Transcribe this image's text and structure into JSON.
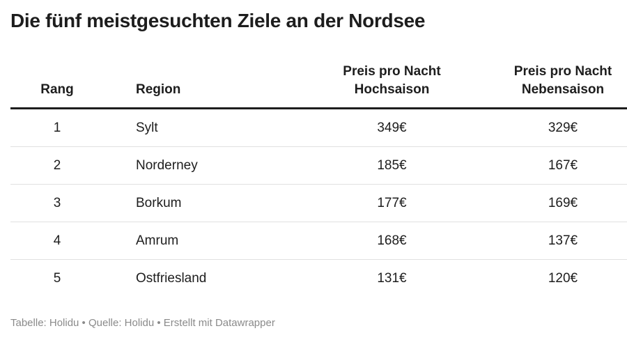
{
  "title": "Die fünf meistgesuchten Ziele an der Nordsee",
  "chart_data": {
    "type": "table",
    "title": "Die fünf meistgesuchten Ziele an der Nordsee",
    "columns": [
      {
        "line1": "Rang",
        "line2": ""
      },
      {
        "line1": "Region",
        "line2": ""
      },
      {
        "line1": "Preis pro Nacht",
        "line2": "Hochsaison"
      },
      {
        "line1": "Preis pro Nacht",
        "line2": "Nebensaison"
      }
    ],
    "rows": [
      {
        "rank": "1",
        "region": "Sylt",
        "high": "349€",
        "low": "329€"
      },
      {
        "rank": "2",
        "region": "Norderney",
        "high": "185€",
        "low": "167€"
      },
      {
        "rank": "3",
        "region": "Borkum",
        "high": "177€",
        "low": "169€"
      },
      {
        "rank": "4",
        "region": "Amrum",
        "high": "168€",
        "low": "137€"
      },
      {
        "rank": "5",
        "region": "Ostfriesland",
        "high": "131€",
        "low": "120€"
      }
    ]
  },
  "footer": "Tabelle: Holidu • Quelle: Holidu • Erstellt mit Datawrapper"
}
